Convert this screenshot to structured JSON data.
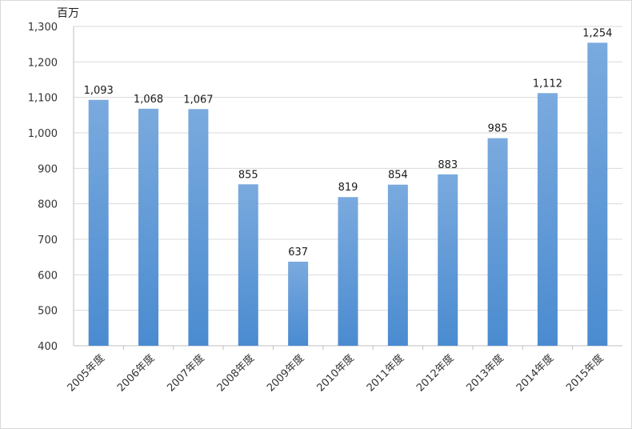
{
  "chart_data": {
    "type": "bar",
    "title": "",
    "xlabel": "",
    "ylabel": "",
    "y_unit": "百万",
    "categories": [
      "2005年度",
      "2006年度",
      "2007年度",
      "2008年度",
      "2009年度",
      "2010年度",
      "2011年度",
      "2012年度",
      "2013年度",
      "2014年度",
      "2015年度"
    ],
    "values": [
      1093,
      1068,
      1067,
      855,
      637,
      819,
      854,
      883,
      985,
      1112,
      1254
    ],
    "value_labels": [
      "1,093",
      "1,068",
      "1,067",
      "855",
      "637",
      "819",
      "854",
      "883",
      "985",
      "1,112",
      "1,254"
    ],
    "ylim": [
      400,
      1300
    ],
    "y_ticks": [
      400,
      500,
      600,
      700,
      800,
      900,
      1000,
      1100,
      1200,
      1300
    ],
    "y_tick_labels": [
      "400",
      "500",
      "600",
      "700",
      "800",
      "900",
      "1,000",
      "1,100",
      "1,200",
      "1,300"
    ],
    "grid": true,
    "legend": "none",
    "colors": {
      "bar_top": "#7aaade",
      "bar_bottom": "#4a8bd0",
      "gridline": "#d9d9d9",
      "axis": "#bfbfbf"
    }
  }
}
